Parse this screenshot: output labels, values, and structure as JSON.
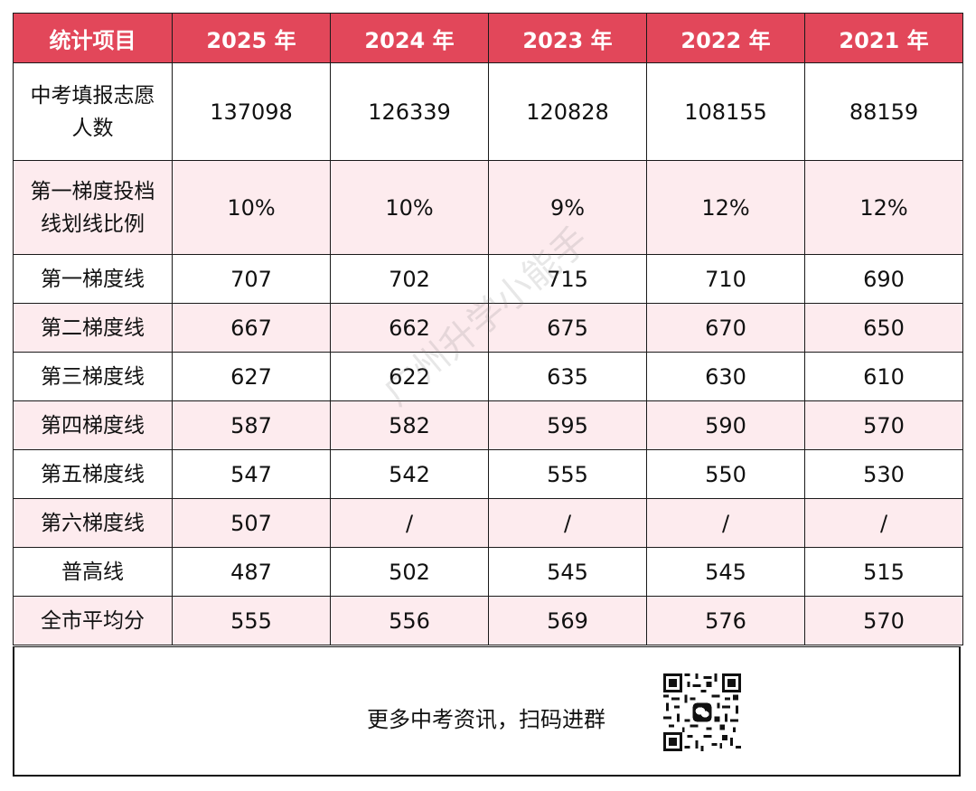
{
  "table": {
    "headers": [
      "统计项目",
      "2025 年",
      "2024 年",
      "2023 年",
      "2022 年",
      "2021 年"
    ],
    "rows": [
      {
        "label": "中考填报志愿人数",
        "values": [
          "137098",
          "126339",
          "120828",
          "108155",
          "88159"
        ]
      },
      {
        "label": "第一梯度投档线划线比例",
        "values": [
          "10%",
          "10%",
          "9%",
          "12%",
          "12%"
        ]
      },
      {
        "label": "第一梯度线",
        "values": [
          "707",
          "702",
          "715",
          "710",
          "690"
        ]
      },
      {
        "label": "第二梯度线",
        "values": [
          "667",
          "662",
          "675",
          "670",
          "650"
        ]
      },
      {
        "label": "第三梯度线",
        "values": [
          "627",
          "622",
          "635",
          "630",
          "610"
        ]
      },
      {
        "label": "第四梯度线",
        "values": [
          "587",
          "582",
          "595",
          "590",
          "570"
        ]
      },
      {
        "label": "第五梯度线",
        "values": [
          "547",
          "542",
          "555",
          "550",
          "530"
        ]
      },
      {
        "label": "第六梯度线",
        "values": [
          "507",
          "/",
          "/",
          "/",
          "/"
        ]
      },
      {
        "label": "普高线",
        "values": [
          "487",
          "502",
          "545",
          "545",
          "515"
        ]
      },
      {
        "label": "全市平均分",
        "values": [
          "555",
          "556",
          "569",
          "576",
          "570"
        ]
      }
    ]
  },
  "footer": {
    "text": "更多中考资讯，扫码进群",
    "qr_icon": "qr-code-icon"
  },
  "watermark": "广州升学小能手",
  "colors": {
    "header_bg": "#e2475a",
    "stripe_bg": "#fdebee"
  }
}
